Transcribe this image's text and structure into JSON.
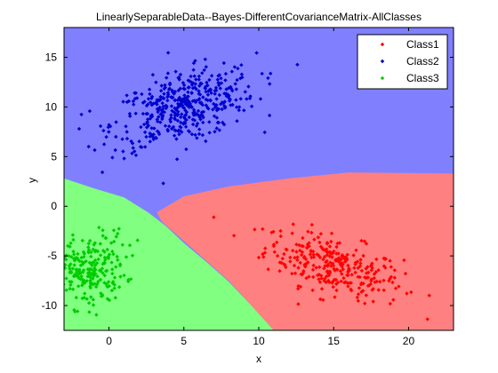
{
  "chart_data": {
    "type": "scatter",
    "title": "LinearlySeparableData--Bayes-DifferentCovarianceMatrix-AllClasses",
    "xlabel": "x",
    "ylabel": "y",
    "xlim": [
      -3,
      23
    ],
    "ylim": [
      -12.5,
      18
    ],
    "xticks": [
      0,
      5,
      10,
      15,
      20
    ],
    "yticks": [
      -10,
      -5,
      0,
      5,
      10,
      15
    ],
    "grid": false,
    "legend_position": "top-right",
    "regions": [
      {
        "name": "Class1",
        "color": "#ff8080"
      },
      {
        "name": "Class2",
        "color": "#8080ff"
      },
      {
        "name": "Class3",
        "color": "#80ff80"
      }
    ],
    "series": [
      {
        "name": "Class1",
        "color": "#ff0000",
        "marker": "diamond",
        "center": [
          15,
          -6
        ],
        "spread": [
          2.3,
          1.7
        ],
        "correlation": -0.55,
        "count": 300
      },
      {
        "name": "Class2",
        "color": "#0000cc",
        "marker": "diamond",
        "center": [
          5,
          10
        ],
        "spread": [
          2.4,
          2.0
        ],
        "correlation": 0.45,
        "count": 450
      },
      {
        "name": "Class3",
        "color": "#00cc00",
        "marker": "diamond",
        "center": [
          -1.5,
          -6.5
        ],
        "spread": [
          1.3,
          1.8
        ],
        "correlation": 0.2,
        "count": 250
      }
    ]
  }
}
